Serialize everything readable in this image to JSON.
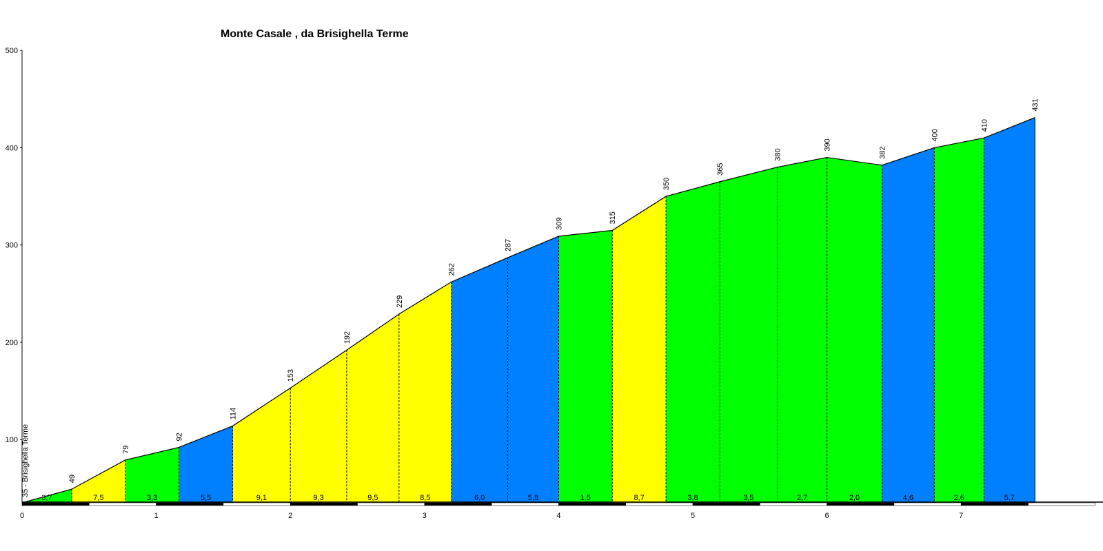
{
  "chart_data": {
    "type": "area",
    "title": "Monte Casale , da Brisighella Terme",
    "xlabel": "",
    "ylabel": "",
    "xlim": [
      0,
      7.92
    ],
    "ylim": [
      35,
      500
    ],
    "x_ticks": [
      "0",
      "1",
      "2",
      "3",
      "4",
      "5",
      "6",
      "7"
    ],
    "y_ticks": [
      "100",
      "200",
      "300",
      "400",
      "500"
    ],
    "start_label": "35 - Brisighella Terme",
    "grid": false,
    "legend": "none",
    "colors": {
      "green": "#00ff00",
      "yellow": "#ffff00",
      "blue": "#0080ff",
      "outline": "#000000"
    },
    "points": [
      {
        "x": 0.0,
        "y": 35
      },
      {
        "x": 0.37,
        "y": 49
      },
      {
        "x": 0.77,
        "y": 79
      },
      {
        "x": 1.17,
        "y": 92
      },
      {
        "x": 1.57,
        "y": 114
      },
      {
        "x": 2.0,
        "y": 153
      },
      {
        "x": 2.42,
        "y": 192
      },
      {
        "x": 2.81,
        "y": 229
      },
      {
        "x": 3.2,
        "y": 262
      },
      {
        "x": 3.62,
        "y": 287
      },
      {
        "x": 4.0,
        "y": 309
      },
      {
        "x": 4.4,
        "y": 315
      },
      {
        "x": 4.8,
        "y": 350
      },
      {
        "x": 5.2,
        "y": 365
      },
      {
        "x": 5.63,
        "y": 380
      },
      {
        "x": 6.0,
        "y": 390
      },
      {
        "x": 6.41,
        "y": 382
      },
      {
        "x": 6.8,
        "y": 400
      },
      {
        "x": 7.17,
        "y": 410
      },
      {
        "x": 7.55,
        "y": 431
      }
    ],
    "point_labels": [
      "",
      "49",
      "79",
      "92",
      "114",
      "153",
      "192",
      "229",
      "262",
      "287",
      "309",
      "315",
      "350",
      "365",
      "380",
      "390",
      "382",
      "400",
      "410",
      "431"
    ],
    "segments": [
      {
        "gradient": "3,7",
        "color": "green"
      },
      {
        "gradient": "7,5",
        "color": "yellow"
      },
      {
        "gradient": "3,3",
        "color": "green"
      },
      {
        "gradient": "5,5",
        "color": "blue"
      },
      {
        "gradient": "9,1",
        "color": "yellow"
      },
      {
        "gradient": "9,3",
        "color": "yellow"
      },
      {
        "gradient": "9,5",
        "color": "yellow"
      },
      {
        "gradient": "8,5",
        "color": "yellow"
      },
      {
        "gradient": "6,0",
        "color": "blue"
      },
      {
        "gradient": "5,8",
        "color": "blue"
      },
      {
        "gradient": "1,5",
        "color": "green"
      },
      {
        "gradient": "8,7",
        "color": "yellow"
      },
      {
        "gradient": "3,8",
        "color": "green"
      },
      {
        "gradient": "3,5",
        "color": "green"
      },
      {
        "gradient": "2,7",
        "color": "green"
      },
      {
        "gradient": "2,0",
        "color": "green"
      },
      {
        "gradient": "4,6",
        "color": "blue"
      },
      {
        "gradient": "2,6",
        "color": "green"
      },
      {
        "gradient": "5,7",
        "color": "blue"
      }
    ]
  }
}
